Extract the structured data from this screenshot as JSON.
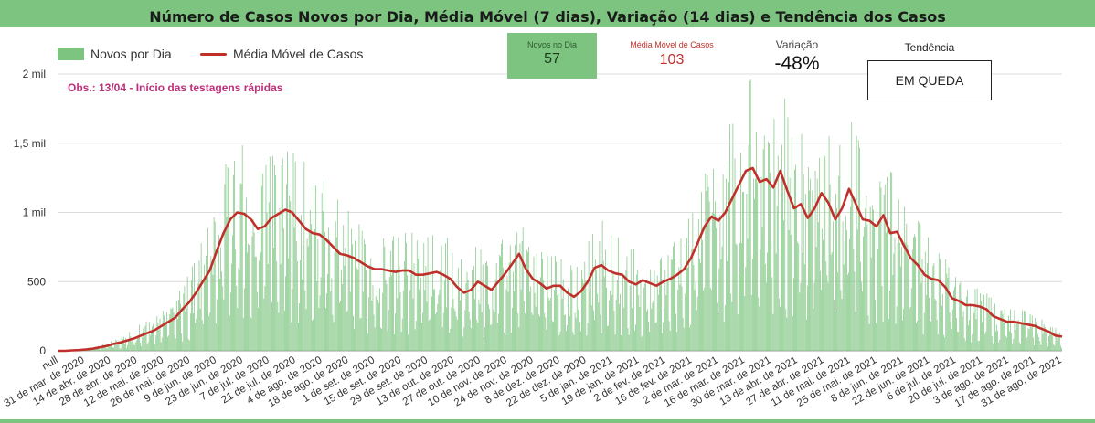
{
  "header": {
    "title": "Número de Casos Novos por Dia, Média Móvel (7 dias), Variação (14 dias) e Tendência dos Casos"
  },
  "legend": {
    "bar_label": "Novos por Dia",
    "line_label": "Média Móvel de Casos"
  },
  "annotation": "Obs.: 13/04 - Início das testagens rápidas",
  "kpis": {
    "novos": {
      "label": "Novos no Dia",
      "value": "57"
    },
    "media": {
      "label": "Média Móvel de Casos",
      "value": "103"
    },
    "variacao": {
      "label": "Variação",
      "value": "-48%"
    },
    "tendencia": {
      "label": "Tendência",
      "value": "EM QUEDA"
    }
  },
  "colors": {
    "bars": "#7cc47f",
    "line": "#c0302b",
    "annotation": "#c0307a",
    "header": "#7cc47f"
  },
  "chart_data": {
    "type": "bar",
    "xlabel": "",
    "ylabel": "",
    "ylim": [
      0,
      2000
    ],
    "yticks": [
      {
        "value": 0,
        "label": "0"
      },
      {
        "value": 500,
        "label": "500"
      },
      {
        "value": 1000,
        "label": "1 mil"
      },
      {
        "value": 1500,
        "label": "1,5 mil"
      },
      {
        "value": 2000,
        "label": "2 mil"
      }
    ],
    "grid": true,
    "legend_position": "top-left",
    "x_tick_labels": [
      "null",
      "31 de mar. de 2020",
      "14 de abr. de 2020",
      "28 de abr. de 2020",
      "12 de mai. de 2020",
      "26 de mai. de 2020",
      "9 de jun. de 2020",
      "23 de jun. de 2020",
      "7 de jul. de 2020",
      "21 de jul. de 2020",
      "4 de ago. de 2020",
      "18 de ago. de 2020",
      "1 de set. de 2020",
      "15 de set. de 2020",
      "29 de set. de 2020",
      "13 de out. de 2020",
      "27 de out. de 2020",
      "10 de nov. de 2020",
      "24 de nov. de 2020",
      "8 de dez. de 2020",
      "22 de dez. de 2020",
      "5 de jan. de 2021",
      "19 de jan. de 2021",
      "2 de fev. de 2021",
      "16 de fev. de 2021",
      "2 de mar. de 2021",
      "16 de mar. de 2021",
      "30 de mar. de 2021",
      "13 de abr. de 2021",
      "27 de abr. de 2021",
      "11 de mai. de 2021",
      "25 de mai. de 2021",
      "8 de jun. de 2021",
      "22 de jun. de 2021",
      "6 de jul. de 2021",
      "20 de jul. de 2021",
      "3 de ago. de 2021",
      "17 de ago. de 2021",
      "31 de ago. de 2021"
    ],
    "series": [
      {
        "name": "Novos por Dia",
        "type": "bar",
        "values_weekly": [
          0,
          0,
          5,
          8,
          15,
          20,
          30,
          45,
          55,
          70,
          90,
          110,
          135,
          150,
          160,
          200,
          230,
          260,
          330,
          380,
          450,
          550,
          620,
          780,
          920,
          1000,
          1050,
          1030,
          1000,
          920,
          940,
          1000,
          1020,
          1050,
          1010,
          960,
          900,
          860,
          850,
          800,
          760,
          720,
          700,
          680,
          640,
          620,
          600,
          600,
          590,
          580,
          590,
          580,
          560,
          560,
          570,
          580,
          560,
          530,
          470,
          430,
          460,
          520,
          480,
          450,
          520,
          580,
          650,
          720,
          600,
          540,
          500,
          460,
          480,
          480,
          430,
          400,
          440,
          520,
          620,
          640,
          590,
          570,
          560,
          510,
          490,
          520,
          500,
          480,
          510,
          530,
          560,
          600,
          680,
          800,
          920,
          990,
          960,
          1020,
          1120,
          1220,
          1320,
          1340,
          1240,
          1260,
          1200,
          1320,
          1180,
          1050,
          1080,
          980,
          1050,
          1160,
          1090,
          970,
          1050,
          1190,
          1080,
          970,
          960,
          920,
          1000,
          870,
          880,
          780,
          690,
          640,
          570,
          540,
          530,
          480,
          400,
          380,
          340,
          320,
          320,
          300,
          260,
          240,
          220,
          220,
          210,
          200,
          190,
          170,
          150,
          120,
          100
        ]
      },
      {
        "name": "Média Móvel de Casos",
        "type": "line",
        "values_weekly": [
          0,
          0,
          3,
          5,
          10,
          15,
          25,
          35,
          50,
          60,
          75,
          90,
          110,
          130,
          150,
          180,
          210,
          240,
          300,
          350,
          420,
          500,
          580,
          720,
          850,
          950,
          1000,
          990,
          950,
          880,
          900,
          960,
          990,
          1020,
          1000,
          940,
          880,
          850,
          840,
          800,
          750,
          700,
          690,
          670,
          640,
          610,
          590,
          590,
          580,
          570,
          580,
          580,
          550,
          550,
          560,
          570,
          550,
          520,
          460,
          420,
          440,
          500,
          470,
          440,
          500,
          560,
          630,
          700,
          590,
          520,
          490,
          450,
          470,
          470,
          420,
          390,
          430,
          500,
          600,
          620,
          580,
          560,
          550,
          500,
          480,
          510,
          490,
          470,
          500,
          520,
          550,
          590,
          670,
          780,
          900,
          970,
          940,
          1000,
          1100,
          1200,
          1300,
          1320,
          1220,
          1240,
          1180,
          1300,
          1160,
          1030,
          1060,
          960,
          1030,
          1140,
          1070,
          950,
          1030,
          1170,
          1060,
          950,
          940,
          900,
          980,
          850,
          860,
          760,
          670,
          620,
          550,
          520,
          510,
          460,
          380,
          360,
          330,
          330,
          320,
          300,
          250,
          230,
          210,
          210,
          200,
          190,
          180,
          160,
          140,
          110,
          103
        ]
      }
    ]
  }
}
